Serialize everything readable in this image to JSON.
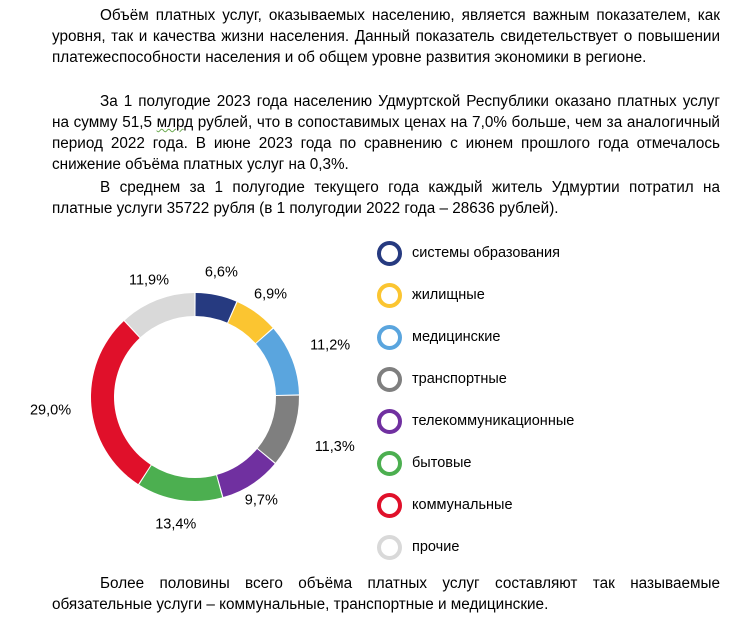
{
  "paragraphs": {
    "p1": "Объём платных услуг, оказываемых населению, является важным показателем, как уровня, так и качества жизни населения. Данный показатель свидетельствует о повышении платежеспособности населения и об общем уровне развития экономики в регионе.",
    "p2_before": "За 1 полугодие 2023 года населению Удмуртской Республики оказано платных услуг на сумму 51,5 ",
    "p2_mlrd": "млрд",
    "p2_after": " рублей, что в сопоставимых ценах на 7,0% больше, чем за аналогичный период 2022 года. В июне 2023 года по сравнению с июнем прошлого года отмечалось снижение объёма платных услуг на 0,3%.",
    "p3": "В среднем за 1 полугодие текущего года каждый житель Удмуртии потратил на платные услуги 35722 рубля (в 1 полугодии 2022 года – 28636 рублей).",
    "p4": "Более половины всего объёма платных услуг составляют так называемые обязательные услуги – коммунальные, транспортные и медицинские."
  },
  "chart_data": {
    "type": "pie",
    "variant": "donut",
    "categories": [
      "системы образования",
      "жилищные",
      "медицинские",
      "транспортные",
      "телекоммуникационные",
      "бытовые",
      "коммунальные",
      "прочие"
    ],
    "values": [
      6.6,
      6.9,
      11.2,
      11.3,
      9.7,
      13.4,
      29.0,
      11.9
    ],
    "labels": [
      "6,6%",
      "6,9%",
      "11,2%",
      "11,3%",
      "9,7%",
      "13,4%",
      "29,0%",
      "11,9%"
    ],
    "colors": [
      "#263a80",
      "#fbc531",
      "#5aa5de",
      "#7f7f7f",
      "#7030a0",
      "#4caf50",
      "#e0102a",
      "#d9d9d9"
    ],
    "legend_position": "right"
  }
}
